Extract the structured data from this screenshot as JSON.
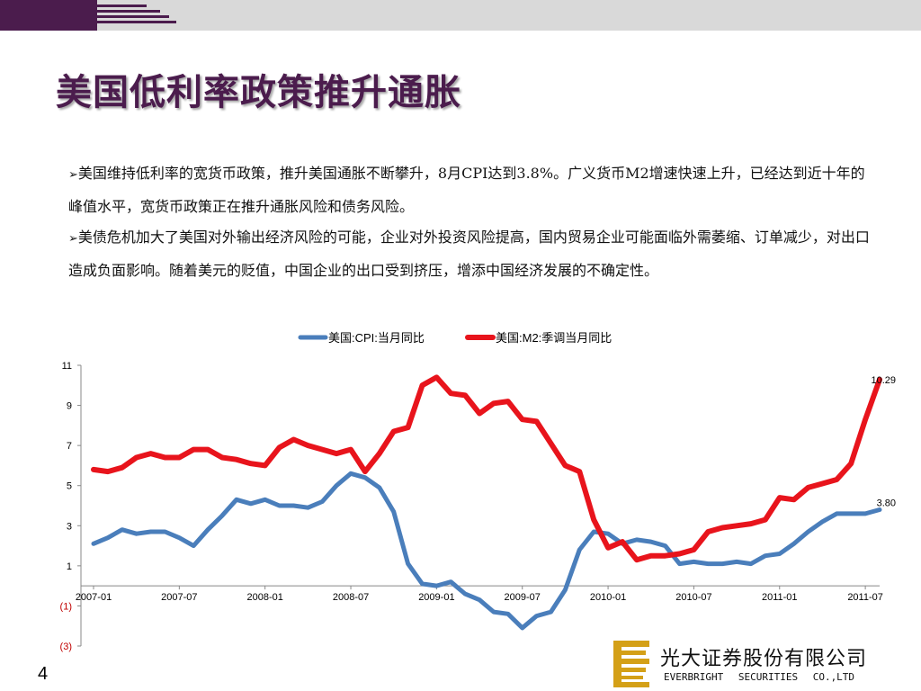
{
  "title": "美国低利率政策推升通胀",
  "paragraphs": [
    "美国维持低利率的宽货币政策，推升美国通胀不断攀升，8月CPI达到3.8%。广义货币M2增速快速上升，已经达到近十年的峰值水平，宽货币政策正在推升通胀风险和债务风险。",
    "美债危机加大了美国对外输出经济风险的可能，企业对外投资风险提高，国内贸易企业可能面临外需萎缩、订单减少，对出口造成负面影响。随着美元的贬值，中国企业的出口受到挤压，增添中国经济发展的不确定性。"
  ],
  "bullet_glyph": "➢",
  "page_number": "4",
  "logo": {
    "cn": "光大证券股份有限公司",
    "en": "EVERBRIGHT SECURITIES CO.,LTD"
  },
  "colors": {
    "brand": "#4b1c4d",
    "cpi": "#4a7ebb",
    "m2": "#e8141c",
    "negative_tick": "#c00000",
    "logo_gold": "#d4a017"
  },
  "chart_data": {
    "type": "line",
    "legend_position": "top-center",
    "grid": false,
    "ylim": [
      -3,
      11
    ],
    "y_ticks": [
      11,
      9,
      7,
      5,
      3,
      1,
      -1,
      -3
    ],
    "y_tick_labels": [
      "11",
      "9",
      "7",
      "5",
      "3",
      "1",
      "(1)",
      "(3)"
    ],
    "x_tick_labels": [
      "2007-01",
      "2007-07",
      "2008-01",
      "2008-07",
      "2009-01",
      "2009-07",
      "2010-01",
      "2010-07",
      "2011-01",
      "2011-07"
    ],
    "x_tick_index": [
      0,
      6,
      12,
      18,
      24,
      30,
      36,
      42,
      48,
      54
    ],
    "series": [
      {
        "name": "美国:CPI:当月同比",
        "values": [
          2.1,
          2.4,
          2.8,
          2.6,
          2.7,
          2.7,
          2.4,
          2.0,
          2.8,
          3.5,
          4.3,
          4.1,
          4.3,
          4.0,
          4.0,
          3.9,
          4.2,
          5.0,
          5.6,
          5.4,
          4.9,
          3.7,
          1.1,
          0.1,
          0.0,
          0.2,
          -0.4,
          -0.7,
          -1.3,
          -1.4,
          -2.1,
          -1.5,
          -1.3,
          -0.2,
          1.8,
          2.7,
          2.6,
          2.1,
          2.3,
          2.2,
          2.0,
          1.1,
          1.2,
          1.1,
          1.1,
          1.2,
          1.1,
          1.5,
          1.6,
          2.1,
          2.7,
          3.2,
          3.6,
          3.6,
          3.6,
          3.8
        ],
        "end_label": "3.80"
      },
      {
        "name": "美国:M2:季调当月同比",
        "values": [
          5.8,
          5.7,
          5.9,
          6.4,
          6.6,
          6.4,
          6.4,
          6.8,
          6.8,
          6.4,
          6.3,
          6.1,
          6.0,
          6.9,
          7.3,
          7.0,
          6.8,
          6.6,
          6.8,
          5.7,
          6.6,
          7.7,
          7.9,
          10.0,
          10.4,
          9.6,
          9.5,
          8.6,
          9.1,
          9.2,
          8.3,
          8.2,
          7.1,
          6.0,
          5.7,
          3.3,
          1.9,
          2.2,
          1.3,
          1.5,
          1.5,
          1.6,
          1.8,
          2.7,
          2.9,
          3.0,
          3.1,
          3.3,
          4.4,
          4.3,
          4.9,
          5.1,
          5.3,
          6.1,
          8.3,
          10.29
        ],
        "end_label": "10.29"
      }
    ]
  }
}
